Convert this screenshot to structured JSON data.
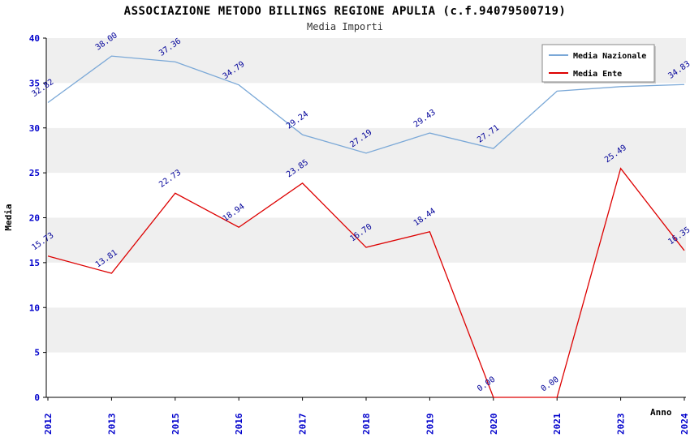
{
  "header": {
    "title": "ASSOCIAZIONE METODO BILLINGS REGIONE APULIA (c.f.94079500719)",
    "subtitle": "Media Importi"
  },
  "chart_data": {
    "type": "line",
    "categories": [
      "2012",
      "2013",
      "2015",
      "2016",
      "2017",
      "2018",
      "2019",
      "2020",
      "2021",
      "2023",
      "2024"
    ],
    "series": [
      {
        "name": "Media Nazionale",
        "color": "#7aa8d7",
        "values": [
          32.82,
          38.0,
          37.36,
          34.79,
          29.24,
          27.19,
          29.43,
          27.71,
          34.1,
          34.6,
          34.83
        ],
        "labels": [
          "32.82",
          "38.00",
          "37.36",
          "34.79",
          "29.24",
          "27.19",
          "29.43",
          "27.71",
          "",
          "",
          "34.83"
        ]
      },
      {
        "name": "Media Ente",
        "color": "#dd0000",
        "values": [
          15.73,
          13.81,
          22.73,
          18.94,
          23.85,
          16.7,
          18.44,
          0.0,
          0.0,
          25.49,
          16.35
        ],
        "labels": [
          "15.73",
          "13.81",
          "22.73",
          "18.94",
          "23.85",
          "16.70",
          "18.44",
          "0.00",
          "0.00",
          "25.49",
          "16.35"
        ]
      }
    ],
    "xlabel": "Anno",
    "ylabel": "Media",
    "ylim": [
      0,
      40
    ],
    "ytick_step": 5,
    "legend_position": "top-right",
    "grid": "alternating-bands",
    "band_colors": [
      "#efefef",
      "#ffffff"
    ],
    "tick_label_color": "#0000cc",
    "point_label_color": "#000099",
    "axis_color": "#000000"
  }
}
